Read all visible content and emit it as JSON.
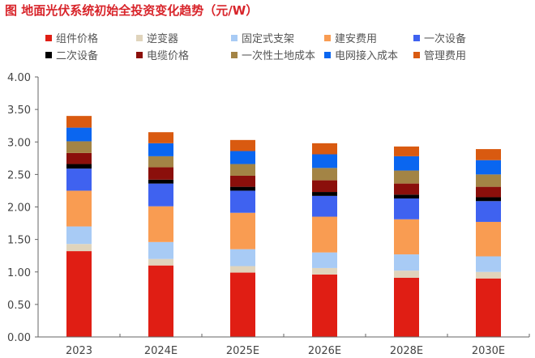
{
  "chart_data": {
    "type": "bar",
    "stacked": true,
    "title": "图 地面光伏系统初始全投资变化趋势（元/W）",
    "xlabel": "",
    "ylabel": "",
    "ylim": [
      0,
      4
    ],
    "yticks": [
      "0.00",
      "0.50",
      "1.00",
      "1.50",
      "2.00",
      "2.50",
      "3.00",
      "3.50",
      "4.00"
    ],
    "grid": false,
    "legend_position": "top",
    "categories": [
      "2023",
      "2024E",
      "2025E",
      "2026E",
      "2028E",
      "2030E"
    ],
    "series": [
      {
        "name": "组件价格",
        "color": "#E01E14",
        "values": [
          1.32,
          1.1,
          0.99,
          0.96,
          0.91,
          0.9
        ]
      },
      {
        "name": "逆变器",
        "color": "#E0D4BC",
        "values": [
          0.11,
          0.1,
          0.1,
          0.1,
          0.11,
          0.1
        ]
      },
      {
        "name": "固定式支架",
        "color": "#A8CBF5",
        "values": [
          0.27,
          0.26,
          0.26,
          0.24,
          0.25,
          0.24
        ]
      },
      {
        "name": "建安费用",
        "color": "#F99C52",
        "values": [
          0.55,
          0.55,
          0.56,
          0.55,
          0.54,
          0.53
        ]
      },
      {
        "name": "一次设备",
        "color": "#3F62F0",
        "values": [
          0.34,
          0.35,
          0.34,
          0.32,
          0.32,
          0.32
        ]
      },
      {
        "name": "二次设备",
        "color": "#000000",
        "values": [
          0.07,
          0.06,
          0.06,
          0.06,
          0.06,
          0.06
        ]
      },
      {
        "name": "电缆价格",
        "color": "#8B0F0B",
        "values": [
          0.17,
          0.19,
          0.17,
          0.18,
          0.17,
          0.16
        ]
      },
      {
        "name": "一次性土地成本",
        "color": "#A38445",
        "values": [
          0.18,
          0.17,
          0.18,
          0.19,
          0.2,
          0.19
        ]
      },
      {
        "name": "电网接入成本",
        "color": "#0A66F0",
        "values": [
          0.21,
          0.2,
          0.2,
          0.21,
          0.22,
          0.22
        ]
      },
      {
        "name": "管理费用",
        "color": "#D95A10",
        "values": [
          0.18,
          0.17,
          0.17,
          0.17,
          0.15,
          0.17
        ]
      }
    ]
  }
}
